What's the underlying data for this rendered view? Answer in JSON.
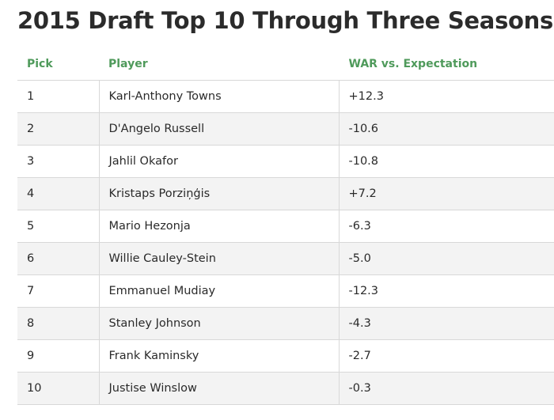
{
  "chart_data": {
    "type": "table",
    "title": "2015 Draft Top 10 Through Three Seasons",
    "columns": [
      "Pick",
      "Player",
      "WAR vs. Expectation"
    ],
    "rows": [
      {
        "pick": "1",
        "player": "Karl-Anthony Towns",
        "war": "+12.3"
      },
      {
        "pick": "2",
        "player": "D'Angelo Russell",
        "war": "-10.6"
      },
      {
        "pick": "3",
        "player": "Jahlil Okafor",
        "war": "-10.8"
      },
      {
        "pick": "4",
        "player": "Kristaps Porziņģis",
        "war": "+7.2"
      },
      {
        "pick": "5",
        "player": "Mario Hezonja",
        "war": "-6.3"
      },
      {
        "pick": "6",
        "player": "Willie Cauley-Stein",
        "war": "-5.0"
      },
      {
        "pick": "7",
        "player": "Emmanuel Mudiay",
        "war": "-12.3"
      },
      {
        "pick": "8",
        "player": "Stanley Johnson",
        "war": "-4.3"
      },
      {
        "pick": "9",
        "player": "Frank Kaminsky",
        "war": "-2.7"
      },
      {
        "pick": "10",
        "player": "Justise Winslow",
        "war": "-0.3"
      }
    ]
  },
  "colors": {
    "header_text": "#4f9a5b",
    "title_text": "#2b2b2b",
    "row_alt": "#f3f3f3"
  }
}
